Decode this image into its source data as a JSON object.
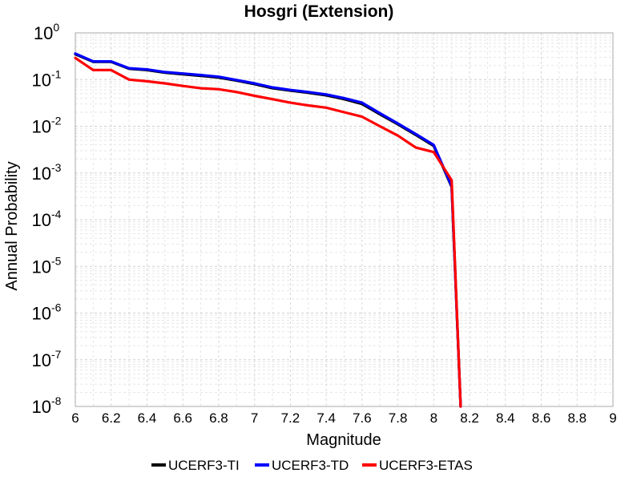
{
  "chart_data": {
    "type": "line",
    "title": "Hosgri (Extension)",
    "xlabel": "Magnitude",
    "ylabel": "Annual Probability",
    "xlim": [
      6,
      9
    ],
    "ylim": [
      1e-08,
      1
    ],
    "log_y": true,
    "grid": true,
    "legend_position": "bottom",
    "x_ticks": [
      "6",
      "6.2",
      "6.4",
      "6.6",
      "6.8",
      "7",
      "7.2",
      "7.4",
      "7.6",
      "7.8",
      "8",
      "8.2",
      "8.4",
      "8.6",
      "8.8",
      "9"
    ],
    "y_ticks": [
      {
        "base": "10",
        "exp": "0"
      },
      {
        "base": "10",
        "exp": "-1"
      },
      {
        "base": "10",
        "exp": "-2"
      },
      {
        "base": "10",
        "exp": "-3"
      },
      {
        "base": "10",
        "exp": "-4"
      },
      {
        "base": "10",
        "exp": "-5"
      },
      {
        "base": "10",
        "exp": "-6"
      },
      {
        "base": "10",
        "exp": "-7"
      },
      {
        "base": "10",
        "exp": "-8"
      }
    ],
    "series": [
      {
        "name": "UCERF3-TI",
        "color": "#000000",
        "x": [
          6.0,
          6.1,
          6.2,
          6.3,
          6.4,
          6.5,
          6.6,
          6.7,
          6.8,
          6.9,
          7.0,
          7.1,
          7.2,
          7.3,
          7.4,
          7.5,
          7.6,
          7.7,
          7.8,
          7.9,
          8.0,
          8.1,
          8.15
        ],
        "y": [
          0.35,
          0.24,
          0.24,
          0.17,
          0.16,
          0.14,
          0.13,
          0.12,
          0.11,
          0.095,
          0.08,
          0.065,
          0.058,
          0.052,
          0.046,
          0.038,
          0.03,
          0.018,
          0.011,
          0.0065,
          0.0038,
          0.0005,
          1e-08
        ]
      },
      {
        "name": "UCERF3-TD",
        "color": "#0000ff",
        "x": [
          6.0,
          6.1,
          6.2,
          6.3,
          6.4,
          6.5,
          6.6,
          6.7,
          6.8,
          6.9,
          7.0,
          7.1,
          7.2,
          7.3,
          7.4,
          7.5,
          7.6,
          7.7,
          7.8,
          7.9,
          8.0,
          8.1,
          8.15
        ],
        "y": [
          0.36,
          0.245,
          0.245,
          0.175,
          0.165,
          0.145,
          0.135,
          0.125,
          0.115,
          0.098,
          0.083,
          0.068,
          0.06,
          0.054,
          0.048,
          0.04,
          0.032,
          0.019,
          0.0115,
          0.0068,
          0.004,
          0.00052,
          1e-08
        ]
      },
      {
        "name": "UCERF3-ETAS",
        "color": "#ff0000",
        "x": [
          6.0,
          6.1,
          6.2,
          6.3,
          6.4,
          6.5,
          6.6,
          6.7,
          6.8,
          6.9,
          7.0,
          7.1,
          7.2,
          7.3,
          7.4,
          7.5,
          7.6,
          7.7,
          7.8,
          7.9,
          8.0,
          8.1,
          8.15
        ],
        "y": [
          0.29,
          0.16,
          0.16,
          0.1,
          0.092,
          0.083,
          0.073,
          0.065,
          0.062,
          0.054,
          0.045,
          0.038,
          0.032,
          0.028,
          0.025,
          0.02,
          0.016,
          0.01,
          0.0063,
          0.0035,
          0.0028,
          0.0007,
          1e-08
        ]
      }
    ]
  }
}
